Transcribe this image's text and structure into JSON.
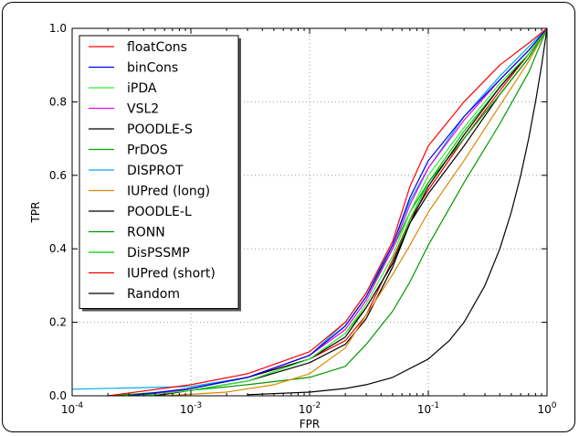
{
  "chart_data": {
    "type": "line",
    "xlabel": "FPR",
    "ylabel": "TPR",
    "xscale": "log",
    "xlim": [
      0.0001,
      1
    ],
    "ylim": [
      0,
      1
    ],
    "grid": true,
    "legend_position": "top-left",
    "x_ticks": [
      {
        "value": 0.0001,
        "base": "10",
        "exp": "-4"
      },
      {
        "value": 0.001,
        "base": "10",
        "exp": "-3"
      },
      {
        "value": 0.01,
        "base": "10",
        "exp": "-2"
      },
      {
        "value": 0.1,
        "base": "10",
        "exp": "-1"
      },
      {
        "value": 1,
        "base": "10",
        "exp": "0"
      }
    ],
    "y_ticks": [
      {
        "value": 0.0,
        "label": "0.0"
      },
      {
        "value": 0.2,
        "label": "0.2"
      },
      {
        "value": 0.4,
        "label": "0.4"
      },
      {
        "value": 0.6,
        "label": "0.6"
      },
      {
        "value": 0.8,
        "label": "0.8"
      },
      {
        "value": 1.0,
        "label": "1.0"
      }
    ],
    "series": [
      {
        "name": "floatCons",
        "color": "#ff0000",
        "points": [
          [
            0.0002,
            0.0
          ],
          [
            0.001,
            0.03
          ],
          [
            0.003,
            0.06
          ],
          [
            0.01,
            0.12
          ],
          [
            0.02,
            0.2
          ],
          [
            0.03,
            0.28
          ],
          [
            0.05,
            0.42
          ],
          [
            0.07,
            0.57
          ],
          [
            0.1,
            0.68
          ],
          [
            0.2,
            0.8
          ],
          [
            0.4,
            0.9
          ],
          [
            0.7,
            0.96
          ],
          [
            1,
            1
          ]
        ]
      },
      {
        "name": "binCons",
        "color": "#0000ee",
        "points": [
          [
            0.0003,
            0.0
          ],
          [
            0.001,
            0.02
          ],
          [
            0.003,
            0.05
          ],
          [
            0.01,
            0.11
          ],
          [
            0.02,
            0.19
          ],
          [
            0.03,
            0.27
          ],
          [
            0.05,
            0.41
          ],
          [
            0.07,
            0.54
          ],
          [
            0.1,
            0.64
          ],
          [
            0.2,
            0.76
          ],
          [
            0.4,
            0.86
          ],
          [
            0.7,
            0.94
          ],
          [
            1,
            1
          ]
        ]
      },
      {
        "name": "iPDA",
        "color": "#33ee33",
        "points": [
          [
            0.0004,
            0.0
          ],
          [
            0.001,
            0.015
          ],
          [
            0.003,
            0.04
          ],
          [
            0.01,
            0.1
          ],
          [
            0.02,
            0.17
          ],
          [
            0.03,
            0.25
          ],
          [
            0.05,
            0.38
          ],
          [
            0.07,
            0.5
          ],
          [
            0.1,
            0.6
          ],
          [
            0.2,
            0.73
          ],
          [
            0.4,
            0.85
          ],
          [
            0.7,
            0.93
          ],
          [
            1,
            1
          ]
        ]
      },
      {
        "name": "VSL2",
        "color": "#ee00ee",
        "points": [
          [
            0.0004,
            0.0
          ],
          [
            0.001,
            0.02
          ],
          [
            0.003,
            0.05
          ],
          [
            0.01,
            0.11
          ],
          [
            0.02,
            0.18
          ],
          [
            0.03,
            0.26
          ],
          [
            0.05,
            0.4
          ],
          [
            0.07,
            0.52
          ],
          [
            0.1,
            0.62
          ],
          [
            0.2,
            0.75
          ],
          [
            0.4,
            0.86
          ],
          [
            0.7,
            0.94
          ],
          [
            1,
            1
          ]
        ]
      },
      {
        "name": "POODLE-S",
        "color": "#000000",
        "points": [
          [
            0.0004,
            0.0
          ],
          [
            0.001,
            0.02
          ],
          [
            0.003,
            0.05
          ],
          [
            0.01,
            0.1
          ],
          [
            0.02,
            0.16
          ],
          [
            0.03,
            0.24
          ],
          [
            0.05,
            0.36
          ],
          [
            0.07,
            0.47
          ],
          [
            0.1,
            0.57
          ],
          [
            0.2,
            0.71
          ],
          [
            0.4,
            0.84
          ],
          [
            0.7,
            0.93
          ],
          [
            1,
            1
          ]
        ]
      },
      {
        "name": "PrDOS",
        "color": "#00aa00",
        "points": [
          [
            0.0003,
            0.0
          ],
          [
            0.001,
            0.02
          ],
          [
            0.003,
            0.05
          ],
          [
            0.01,
            0.11
          ],
          [
            0.02,
            0.19
          ],
          [
            0.03,
            0.27
          ],
          [
            0.05,
            0.4
          ],
          [
            0.07,
            0.5
          ],
          [
            0.1,
            0.58
          ],
          [
            0.2,
            0.7
          ],
          [
            0.4,
            0.82
          ],
          [
            0.7,
            0.92
          ],
          [
            1,
            1
          ]
        ]
      },
      {
        "name": "DISPROT",
        "color": "#00aaee",
        "points": [
          [
            0.0001,
            0.018
          ],
          [
            0.001,
            0.025
          ],
          [
            0.003,
            0.05
          ],
          [
            0.01,
            0.11
          ],
          [
            0.02,
            0.2
          ],
          [
            0.03,
            0.28
          ],
          [
            0.05,
            0.41
          ],
          [
            0.07,
            0.53
          ],
          [
            0.1,
            0.62
          ],
          [
            0.2,
            0.76
          ],
          [
            0.4,
            0.87
          ],
          [
            0.7,
            0.95
          ],
          [
            1,
            1
          ]
        ]
      },
      {
        "name": "IUPred (long)",
        "color": "#dd8800",
        "points": [
          [
            0.0006,
            0.0
          ],
          [
            0.002,
            0.01
          ],
          [
            0.005,
            0.03
          ],
          [
            0.01,
            0.06
          ],
          [
            0.02,
            0.13
          ],
          [
            0.03,
            0.22
          ],
          [
            0.05,
            0.33
          ],
          [
            0.07,
            0.41
          ],
          [
            0.1,
            0.5
          ],
          [
            0.2,
            0.64
          ],
          [
            0.4,
            0.79
          ],
          [
            0.7,
            0.91
          ],
          [
            1,
            1
          ]
        ]
      },
      {
        "name": "POODLE-L",
        "color": "#000000",
        "points": [
          [
            0.0005,
            0.0
          ],
          [
            0.001,
            0.015
          ],
          [
            0.003,
            0.04
          ],
          [
            0.01,
            0.09
          ],
          [
            0.02,
            0.14
          ],
          [
            0.03,
            0.21
          ],
          [
            0.05,
            0.35
          ],
          [
            0.07,
            0.47
          ],
          [
            0.1,
            0.55
          ],
          [
            0.2,
            0.68
          ],
          [
            0.4,
            0.82
          ],
          [
            0.7,
            0.92
          ],
          [
            1,
            1
          ]
        ]
      },
      {
        "name": "RONN",
        "color": "#009900",
        "points": [
          [
            0.0002,
            0.0
          ],
          [
            0.001,
            0.015
          ],
          [
            0.003,
            0.03
          ],
          [
            0.01,
            0.05
          ],
          [
            0.02,
            0.08
          ],
          [
            0.03,
            0.14
          ],
          [
            0.05,
            0.23
          ],
          [
            0.07,
            0.31
          ],
          [
            0.1,
            0.41
          ],
          [
            0.2,
            0.58
          ],
          [
            0.4,
            0.74
          ],
          [
            0.7,
            0.88
          ],
          [
            1,
            1
          ]
        ]
      },
      {
        "name": "DisPSSMP",
        "color": "#00cc00",
        "points": [
          [
            0.0003,
            0.0
          ],
          [
            0.001,
            0.015
          ],
          [
            0.003,
            0.04
          ],
          [
            0.01,
            0.1
          ],
          [
            0.02,
            0.17
          ],
          [
            0.03,
            0.24
          ],
          [
            0.05,
            0.36
          ],
          [
            0.07,
            0.48
          ],
          [
            0.1,
            0.58
          ],
          [
            0.2,
            0.72
          ],
          [
            0.4,
            0.84
          ],
          [
            0.7,
            0.93
          ],
          [
            1,
            1
          ]
        ]
      },
      {
        "name": "IUPred (short)",
        "color": "#ee0000",
        "points": [
          [
            0.0004,
            0.0
          ],
          [
            0.001,
            0.02
          ],
          [
            0.003,
            0.05
          ],
          [
            0.01,
            0.1
          ],
          [
            0.02,
            0.15
          ],
          [
            0.03,
            0.22
          ],
          [
            0.05,
            0.37
          ],
          [
            0.07,
            0.48
          ],
          [
            0.1,
            0.56
          ],
          [
            0.2,
            0.7
          ],
          [
            0.4,
            0.83
          ],
          [
            0.7,
            0.93
          ],
          [
            1,
            1
          ]
        ]
      },
      {
        "name": "Random",
        "color": "#000000",
        "points": [
          [
            0.003,
            0.003
          ],
          [
            0.01,
            0.01
          ],
          [
            0.02,
            0.02
          ],
          [
            0.03,
            0.03
          ],
          [
            0.05,
            0.05
          ],
          [
            0.1,
            0.1
          ],
          [
            0.15,
            0.15
          ],
          [
            0.2,
            0.2
          ],
          [
            0.3,
            0.3
          ],
          [
            0.4,
            0.4
          ],
          [
            0.5,
            0.5
          ],
          [
            0.6,
            0.6
          ],
          [
            0.7,
            0.7
          ],
          [
            0.8,
            0.8
          ],
          [
            0.9,
            0.9
          ],
          [
            1,
            1
          ]
        ]
      }
    ]
  }
}
